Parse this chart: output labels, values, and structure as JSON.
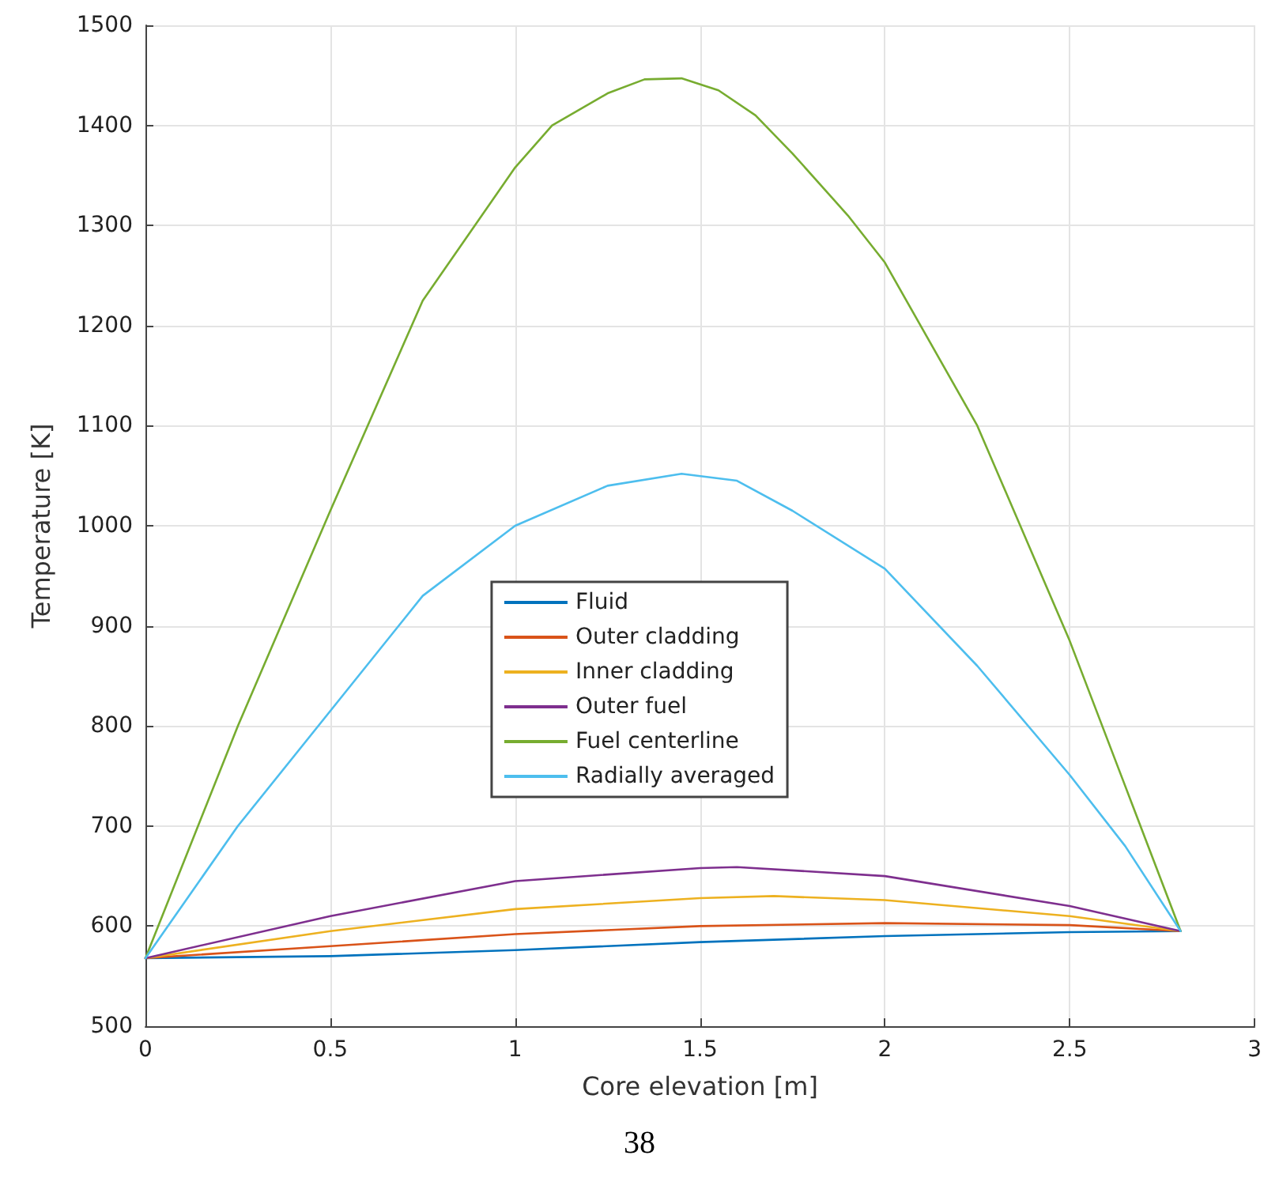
{
  "chart_data": {
    "type": "line",
    "xlabel": "Core elevation [m]",
    "ylabel": "Temperature [K]",
    "xlim": [
      0,
      3
    ],
    "xticks": [
      0,
      0.5,
      1,
      1.5,
      2,
      2.5,
      3
    ],
    "ylim": [
      500,
      1500
    ],
    "yticks": [
      500,
      600,
      700,
      800,
      900,
      1000,
      1100,
      1200,
      1300,
      1400,
      1500
    ],
    "grid": true,
    "legend": "center",
    "marker": "none",
    "line_style": "solid",
    "annotations": [
      "38"
    ],
    "series": [
      {
        "name": "Fluid",
        "color": "#0072bd",
        "x": [
          0,
          0.5,
          1,
          1.5,
          2,
          2.5,
          2.8
        ],
        "values": [
          568,
          570,
          576,
          584,
          590,
          594,
          595
        ]
      },
      {
        "name": "Outer cladding",
        "color": "#d95319",
        "x": [
          0,
          0.5,
          1,
          1.5,
          2,
          2.5,
          2.8
        ],
        "values": [
          568,
          580,
          592,
          600,
          603,
          601,
          595
        ]
      },
      {
        "name": "Inner cladding",
        "color": "#edb120",
        "x": [
          0,
          0.5,
          1,
          1.5,
          1.7,
          2,
          2.5,
          2.8
        ],
        "values": [
          568,
          595,
          617,
          628,
          630,
          626,
          610,
          595
        ]
      },
      {
        "name": "Outer fuel",
        "color": "#7e2f8e",
        "x": [
          0,
          0.5,
          1,
          1.5,
          1.6,
          2,
          2.5,
          2.8
        ],
        "values": [
          568,
          610,
          645,
          658,
          659,
          650,
          620,
          595
        ]
      },
      {
        "name": "Fuel centerline",
        "color": "#77ac30",
        "x": [
          0,
          0.25,
          0.5,
          0.75,
          1,
          1.1,
          1.25,
          1.35,
          1.45,
          1.55,
          1.65,
          1.75,
          1.9,
          2,
          2.25,
          2.5,
          2.65,
          2.8
        ],
        "values": [
          568,
          800,
          1015,
          1225,
          1358,
          1400,
          1432,
          1446,
          1447,
          1435,
          1410,
          1372,
          1310,
          1263,
          1100,
          885,
          740,
          595
        ]
      },
      {
        "name": "Radially averaged",
        "color": "#4dbeee",
        "x": [
          0,
          0.25,
          0.5,
          0.75,
          1,
          1.25,
          1.45,
          1.6,
          1.75,
          2,
          2.25,
          2.5,
          2.65,
          2.8
        ],
        "values": [
          568,
          700,
          815,
          930,
          1000,
          1040,
          1052,
          1045,
          1015,
          957,
          860,
          751,
          680,
          595
        ]
      }
    ]
  }
}
